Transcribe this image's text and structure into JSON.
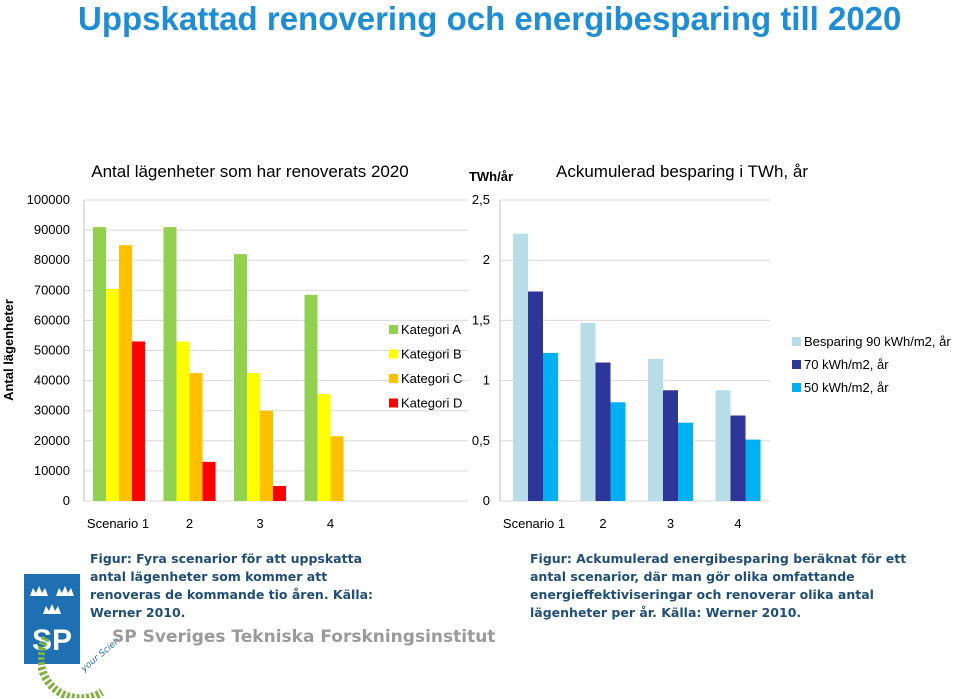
{
  "page": {
    "title": "Uppskattad renovering och energibesparing till 2020"
  },
  "captions": {
    "left": "Figur: Fyra scenarior för att uppskatta antal lägenheter som kommer att renoveras de kommande tio åren. Källa: Werner 2010.",
    "right": "Figur: Ackumulerad energibesparing beräknat för ett antal scenarior, där man gör olika omfattande energieffektiviseringar och renoverar olika antal lägenheter per år. Källa: Werner 2010."
  },
  "logo": {
    "letters": "SP",
    "text": "SP Sveriges Tekniska Forskningsinstitut",
    "partner_text": "your Science Partner"
  },
  "chart_data": [
    {
      "type": "bar",
      "title": "Antal lägenheter som har renoverats 2020",
      "xlabel": "",
      "ylabel": "Antal lägenheter",
      "categories": [
        "Scenario 1",
        "2",
        "3",
        "4"
      ],
      "ylim": [
        0,
        100000
      ],
      "yticks": [
        "0",
        "10000",
        "20000",
        "30000",
        "40000",
        "50000",
        "60000",
        "70000",
        "80000",
        "90000",
        "100000"
      ],
      "legend_position": "right",
      "series": [
        {
          "name": "Kategori A",
          "color": "#92d050",
          "values": [
            91000,
            91000,
            82000,
            68500
          ]
        },
        {
          "name": "Kategori B",
          "color": "#ffff00",
          "values": [
            70500,
            53000,
            42500,
            35500
          ]
        },
        {
          "name": "Kategori C",
          "color": "#ffc000",
          "values": [
            85000,
            42500,
            30000,
            21500
          ]
        },
        {
          "name": "Kategori D",
          "color": "#ff0000",
          "values": [
            53000,
            13000,
            5000,
            0
          ]
        }
      ]
    },
    {
      "type": "bar",
      "title": "Ackumulerad besparing i TWh, år",
      "xlabel": "",
      "ylabel": "TWh/år",
      "categories": [
        "Scenario 1",
        "2",
        "3",
        "4"
      ],
      "ylim": [
        0,
        2.5
      ],
      "yticks": [
        "0",
        "0,5",
        "1",
        "1,5",
        "2",
        "2,5"
      ],
      "legend_position": "right",
      "series": [
        {
          "name": "Besparing 90 kWh/m2, år",
          "color": "#b7dde8",
          "values": [
            2.22,
            1.48,
            1.18,
            0.92
          ]
        },
        {
          "name": "70 kWh/m2, år",
          "color": "#2f3699",
          "values": [
            1.74,
            1.15,
            0.92,
            0.71
          ]
        },
        {
          "name": "50 kWh/m2, år",
          "color": "#00b0f0",
          "values": [
            1.23,
            0.82,
            0.65,
            0.51
          ]
        }
      ]
    }
  ]
}
